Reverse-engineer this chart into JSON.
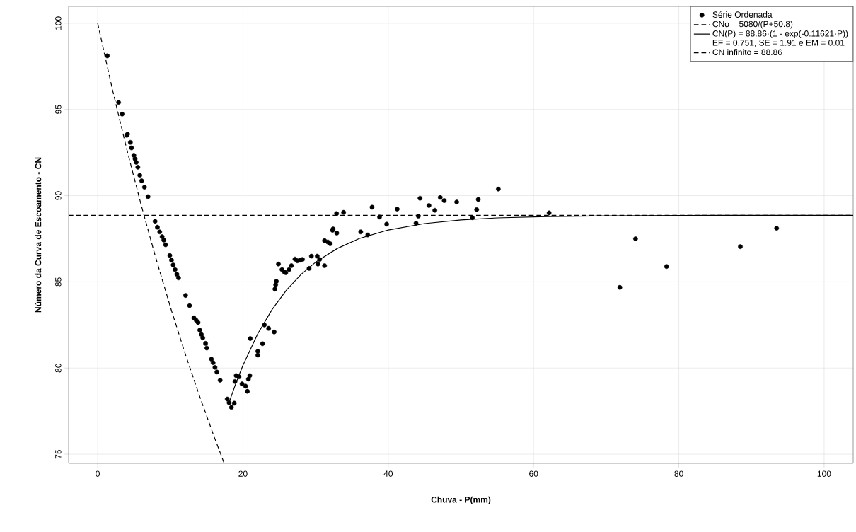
{
  "chart_data": {
    "type": "scatter",
    "xlabel": "Chuva - P(mm)",
    "ylabel": "Número da Curva de Escoamento - CN",
    "xlim": [
      -4,
      104
    ],
    "ylim": [
      74.47,
      100.98
    ],
    "xticks": [
      0,
      20,
      40,
      60,
      80,
      100
    ],
    "yticks": [
      75,
      80,
      85,
      90,
      95,
      100
    ],
    "grid": true,
    "legend": "top right",
    "annotations": [
      "EF = 0.751,  SE = 1.91  e  EM = 0.01"
    ],
    "series": [
      {
        "name": "Série Ordenada",
        "marker": "circle",
        "color": "#000000",
        "x": [
          1.33,
          2.88,
          3.37,
          4.0,
          4.11,
          4.5,
          4.66,
          4.98,
          5.15,
          5.31,
          5.53,
          5.8,
          6.05,
          6.44,
          6.93,
          7.9,
          8.22,
          8.54,
          8.87,
          9.1,
          9.35,
          9.93,
          10.16,
          10.39,
          10.65,
          10.9,
          11.13,
          12.1,
          12.65,
          13.24,
          13.56,
          13.82,
          14.05,
          14.27,
          14.47,
          14.85,
          15.02,
          15.66,
          15.89,
          16.15,
          16.41,
          16.86,
          17.83,
          18.09,
          18.41,
          18.8,
          18.9,
          19.06,
          19.45,
          19.87,
          20.36,
          20.61,
          20.75,
          20.94,
          21.0,
          22.04,
          22.04,
          22.69,
          22.95,
          23.53,
          24.3,
          24.4,
          24.5,
          24.6,
          24.88,
          25.37,
          25.7,
          25.89,
          26.34,
          26.67,
          27.16,
          27.48,
          27.86,
          28.19,
          29.1,
          29.42,
          30.22,
          30.32,
          30.55,
          31.23,
          31.23,
          31.68,
          32.01,
          32.33,
          32.4,
          32.91,
          32.88,
          33.85,
          36.21,
          37.18,
          37.77,
          38.8,
          39.78,
          41.23,
          43.82,
          44.14,
          44.37,
          45.6,
          46.41,
          47.15,
          47.7,
          49.42,
          51.58,
          52.17,
          52.39,
          55.15,
          62.14,
          71.88,
          74.04,
          78.31,
          88.47,
          93.46
        ],
        "values": [
          98.11,
          95.41,
          94.73,
          93.5,
          93.57,
          93.09,
          92.77,
          92.34,
          92.13,
          91.93,
          91.65,
          91.18,
          90.86,
          90.49,
          89.94,
          88.51,
          88.17,
          87.9,
          87.62,
          87.42,
          87.15,
          86.53,
          86.26,
          85.98,
          85.71,
          85.44,
          85.23,
          84.21,
          83.62,
          82.91,
          82.77,
          82.64,
          82.2,
          81.95,
          81.75,
          81.43,
          81.16,
          80.52,
          80.31,
          80.04,
          79.77,
          79.29,
          78.2,
          77.99,
          77.72,
          77.96,
          79.22,
          79.56,
          79.49,
          79.08,
          78.95,
          78.65,
          79.36,
          79.56,
          81.71,
          80.97,
          80.75,
          81.41,
          82.5,
          82.3,
          82.09,
          84.58,
          84.83,
          85.03,
          86.03,
          85.71,
          85.57,
          85.53,
          85.71,
          85.94,
          86.32,
          86.22,
          86.26,
          86.3,
          85.78,
          86.49,
          86.49,
          86.03,
          86.3,
          85.94,
          87.39,
          87.31,
          87.21,
          87.99,
          88.07,
          87.83,
          88.96,
          89.03,
          87.9,
          87.72,
          89.33,
          88.76,
          88.35,
          89.22,
          88.4,
          88.81,
          89.85,
          89.43,
          89.15,
          89.9,
          89.71,
          89.63,
          88.72,
          89.19,
          89.78,
          90.38,
          89.0,
          84.68,
          87.5,
          85.89,
          87.04,
          88.11
        ]
      },
      {
        "name": "CNo = 5080/(P+50.8)",
        "type": "line",
        "line_style": "dashed",
        "color": "#000000",
        "x": [
          0,
          2,
          4,
          6,
          8,
          10,
          12,
          14,
          16,
          17.4
        ],
        "values": [
          100,
          96.21,
          92.7,
          89.44,
          86.39,
          83.55,
          80.89,
          78.4,
          76.05,
          74.49
        ]
      },
      {
        "name": "CN(P) = 88.86·(1 - exp(-0.11621·P))",
        "type": "line",
        "line_style": "solid",
        "color": "#000000",
        "x": [
          18,
          19,
          20,
          22,
          24,
          26,
          28,
          30,
          33,
          36,
          40,
          45,
          50,
          55,
          62,
          70,
          80,
          90,
          104
        ],
        "values": [
          77.89,
          79.09,
          80.16,
          81.96,
          83.39,
          84.53,
          85.43,
          86.14,
          86.94,
          87.51,
          88.01,
          88.38,
          88.59,
          88.71,
          88.79,
          88.83,
          88.85,
          88.86,
          88.86
        ]
      },
      {
        "name": "CN infinito = 88.86",
        "type": "line",
        "line_style": "dashed",
        "color": "#000000",
        "x": [
          -4,
          104
        ],
        "values": [
          88.86,
          88.86
        ]
      }
    ]
  }
}
